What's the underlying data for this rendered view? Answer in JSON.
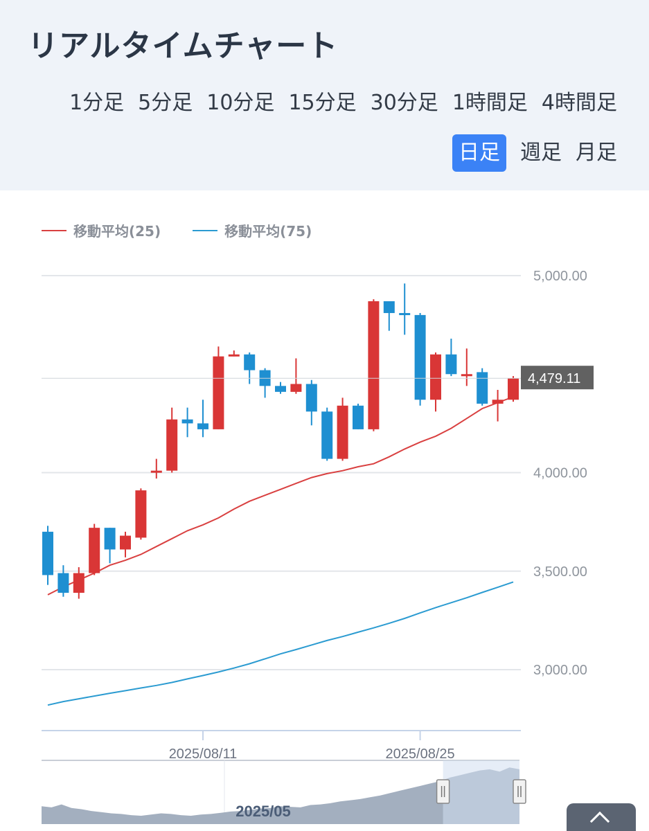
{
  "header": {
    "title": "リアルタイムチャート",
    "timeframes_row1": [
      "1分足",
      "5分足",
      "10分足",
      "15分足",
      "30分足",
      "1時間足",
      "4時間足"
    ],
    "timeframes_row2": [
      "日足",
      "週足",
      "月足"
    ],
    "active_timeframe": "日足"
  },
  "legend": {
    "ma25_label": "移動平均(25)",
    "ma75_label": "移動平均(75)"
  },
  "colors": {
    "up": "#d93636",
    "down": "#1e8fd1",
    "ma25": "#d94040",
    "ma75": "#2b9bd1",
    "active_tab": "#3b82f6"
  },
  "chart_data": {
    "type": "candlestick",
    "ylim": [
      2700,
      5050
    ],
    "yticks": [
      3000,
      3500,
      4000,
      5000
    ],
    "ytick_labels": [
      "3,000.00",
      "3,500.00",
      "4,000.00",
      "5,000.00"
    ],
    "xtick_labels": [
      {
        "index": 10,
        "label": "2025/08/11"
      },
      {
        "index": 24,
        "label": "2025/08/25"
      }
    ],
    "last_price_label": "4,479.11",
    "last_price": 4479.11,
    "candles": [
      {
        "o": 3700,
        "h": 3730,
        "l": 3430,
        "c": 3480
      },
      {
        "o": 3490,
        "h": 3530,
        "l": 3370,
        "c": 3390
      },
      {
        "o": 3390,
        "h": 3520,
        "l": 3360,
        "c": 3490
      },
      {
        "o": 3490,
        "h": 3740,
        "l": 3480,
        "c": 3720
      },
      {
        "o": 3720,
        "h": 3720,
        "l": 3540,
        "c": 3610
      },
      {
        "o": 3610,
        "h": 3700,
        "l": 3570,
        "c": 3680
      },
      {
        "o": 3670,
        "h": 3920,
        "l": 3660,
        "c": 3910
      },
      {
        "o": 4010,
        "h": 4070,
        "l": 3970,
        "c": 4010
      },
      {
        "o": 4010,
        "h": 4330,
        "l": 4000,
        "c": 4270
      },
      {
        "o": 4270,
        "h": 4330,
        "l": 4180,
        "c": 4250
      },
      {
        "o": 4250,
        "h": 4370,
        "l": 4180,
        "c": 4220
      },
      {
        "o": 4220,
        "h": 4640,
        "l": 4220,
        "c": 4590
      },
      {
        "o": 4600,
        "h": 4620,
        "l": 4590,
        "c": 4600
      },
      {
        "o": 4600,
        "h": 4610,
        "l": 4450,
        "c": 4520
      },
      {
        "o": 4520,
        "h": 4530,
        "l": 4380,
        "c": 4440
      },
      {
        "o": 4440,
        "h": 4460,
        "l": 4400,
        "c": 4410
      },
      {
        "o": 4410,
        "h": 4580,
        "l": 4400,
        "c": 4450
      },
      {
        "o": 4450,
        "h": 4470,
        "l": 4240,
        "c": 4310
      },
      {
        "o": 4310,
        "h": 4330,
        "l": 4060,
        "c": 4070
      },
      {
        "o": 4070,
        "h": 4380,
        "l": 4060,
        "c": 4340
      },
      {
        "o": 4340,
        "h": 4350,
        "l": 4220,
        "c": 4220
      },
      {
        "o": 4220,
        "h": 4880,
        "l": 4210,
        "c": 4870
      },
      {
        "o": 4870,
        "h": 4870,
        "l": 4720,
        "c": 4810
      },
      {
        "o": 4810,
        "h": 4960,
        "l": 4700,
        "c": 4800
      },
      {
        "o": 4800,
        "h": 4810,
        "l": 4340,
        "c": 4370
      },
      {
        "o": 4370,
        "h": 4610,
        "l": 4310,
        "c": 4600
      },
      {
        "o": 4600,
        "h": 4680,
        "l": 4490,
        "c": 4500
      },
      {
        "o": 4500,
        "h": 4630,
        "l": 4440,
        "c": 4500
      },
      {
        "o": 4510,
        "h": 4530,
        "l": 4340,
        "c": 4350
      },
      {
        "o": 4350,
        "h": 4420,
        "l": 4260,
        "c": 4370
      },
      {
        "o": 4370,
        "h": 4490,
        "l": 4360,
        "c": 4479.11
      }
    ],
    "series": [
      {
        "name": "移動平均(25)",
        "values": [
          3380,
          3420,
          3455,
          3490,
          3530,
          3555,
          3585,
          3625,
          3665,
          3705,
          3735,
          3770,
          3815,
          3855,
          3885,
          3915,
          3945,
          3975,
          3995,
          4010,
          4030,
          4045,
          4080,
          4120,
          4155,
          4185,
          4225,
          4275,
          4325,
          4355,
          4385
        ]
      },
      {
        "name": "移動平均(75)",
        "values": [
          2820,
          2838,
          2852,
          2866,
          2880,
          2893,
          2907,
          2920,
          2935,
          2953,
          2970,
          2988,
          3008,
          3030,
          3055,
          3080,
          3102,
          3125,
          3148,
          3168,
          3190,
          3212,
          3235,
          3260,
          3288,
          3315,
          3340,
          3365,
          3392,
          3418,
          3445
        ]
      }
    ],
    "navigator": {
      "label": "2025/05",
      "values": [
        0.3,
        0.28,
        0.33,
        0.27,
        0.25,
        0.22,
        0.2,
        0.18,
        0.17,
        0.15,
        0.14,
        0.16,
        0.18,
        0.17,
        0.15,
        0.14,
        0.16,
        0.17,
        0.19,
        0.21,
        0.22,
        0.24,
        0.26,
        0.27,
        0.3,
        0.29,
        0.28,
        0.32,
        0.33,
        0.35,
        0.38,
        0.4,
        0.42,
        0.45,
        0.48,
        0.52,
        0.56,
        0.6,
        0.64,
        0.68,
        0.72,
        0.78,
        0.82,
        0.86,
        0.9,
        0.92,
        0.88,
        0.95,
        0.92
      ],
      "selection_start": 0.84,
      "selection_end": 1.0
    }
  }
}
